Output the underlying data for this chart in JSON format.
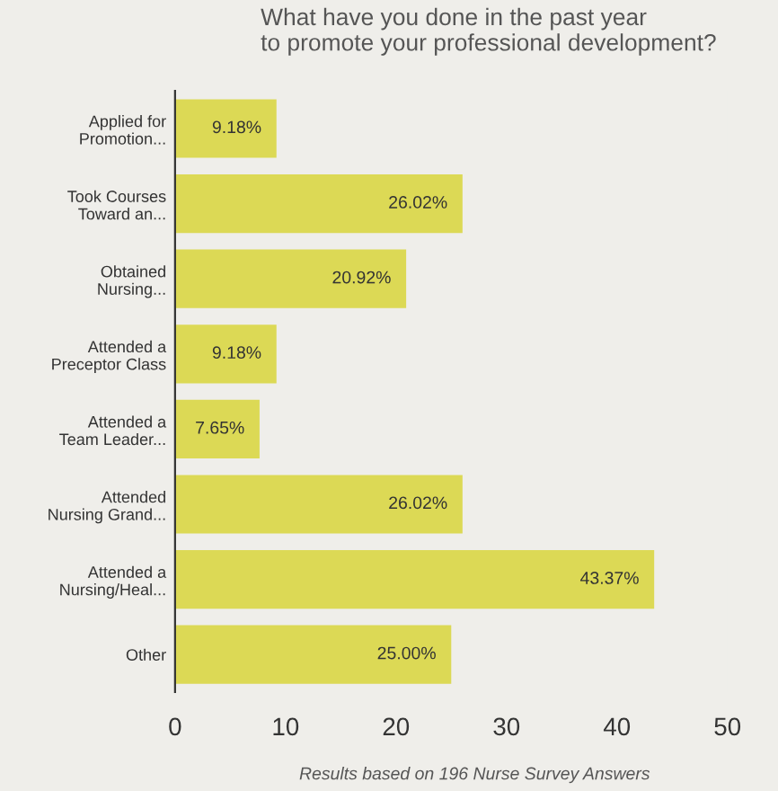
{
  "chart_data": {
    "type": "bar",
    "orientation": "horizontal",
    "title": "What have you done in the past year\nto promote your professional development?",
    "categories": [
      "Applied for\nPromotion...",
      "Took Courses\nToward an...",
      "Obtained\nNursing...",
      "Attended a\nPreceptor Class",
      "Attended a\nTeam Leader...",
      "Attended\nNursing Grand...",
      "Attended a\nNursing/Heal...",
      "Other"
    ],
    "values": [
      9.18,
      26.02,
      20.92,
      9.18,
      7.65,
      26.02,
      43.37,
      25.0
    ],
    "value_labels": [
      "9.18%",
      "26.02%",
      "20.92%",
      "9.18%",
      "7.65%",
      "26.02%",
      "43.37%",
      "25.00%"
    ],
    "color": "#dcd955",
    "xlim": [
      0,
      50
    ],
    "xticks": [
      0,
      10,
      20,
      30,
      40,
      50
    ],
    "grid": false,
    "annotations": [
      "Results based on 196 Nurse Survey Answers"
    ]
  }
}
